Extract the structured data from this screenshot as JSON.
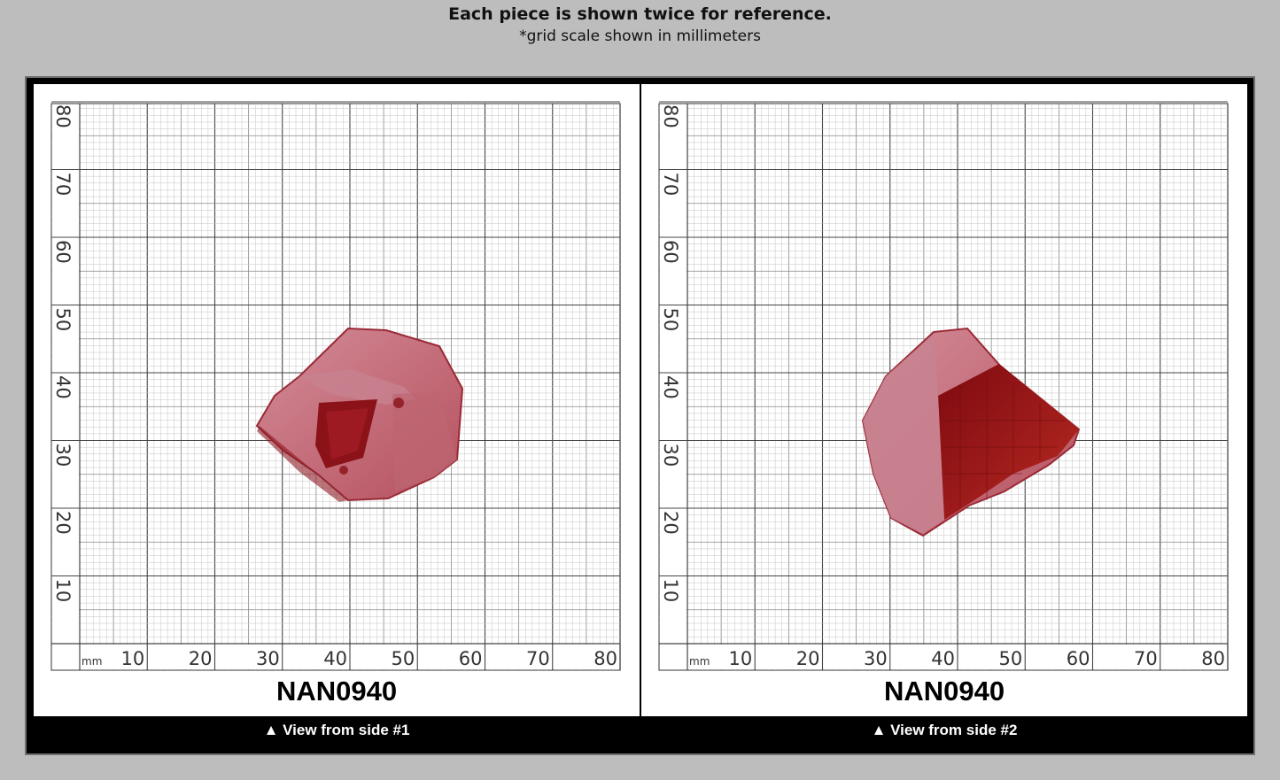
{
  "header": {
    "title": "Each piece is shown twice for reference.",
    "subtitle": "*grid scale shown in millimeters"
  },
  "grid": {
    "unit_label": "mm",
    "x_ticks": [
      "10",
      "20",
      "30",
      "40",
      "50",
      "60",
      "70",
      "80"
    ],
    "y_ticks": [
      "10",
      "20",
      "30",
      "40",
      "50",
      "60",
      "70",
      "80"
    ]
  },
  "panels": [
    {
      "piece_id": "NAN0940",
      "caption": "▲ View from side #1"
    },
    {
      "piece_id": "NAN0940",
      "caption": "▲ View from side #2"
    }
  ],
  "colors": {
    "stone": "#a8323e",
    "stone_frosted": "#c87a86",
    "stone_deep": "#8a1218"
  }
}
